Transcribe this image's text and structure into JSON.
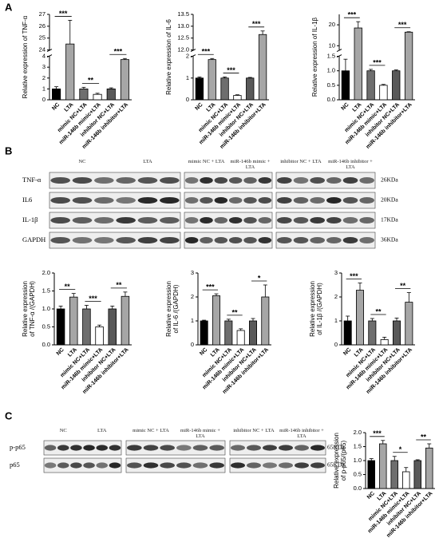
{
  "panels": [
    "A",
    "B",
    "C"
  ],
  "blots": [
    {
      "groups": [
        "NC",
        "LTA",
        "mimic NC + LTA",
        "miR-146b mimic + LTA",
        "inhibitor NC + LTA",
        "miR-146b inhibitor + LTA"
      ],
      "rows": [
        "TNF-α",
        "IL6",
        "IL-1β",
        "GAPDH"
      ],
      "sizes": [
        "26KDa",
        "20KDa",
        "17KDa",
        "36KDa"
      ]
    },
    {
      "groups": [
        "NC",
        "LTA",
        "mimic NC + LTA",
        "miR-146b mimic + LTA",
        "inhibitor NC + LTA",
        "miR-146b inhibitor + LTA"
      ],
      "rows": [
        "p-p65",
        "p65"
      ],
      "sizes": [
        "65KDa",
        "65KDa"
      ]
    }
  ],
  "chart_data": [
    {
      "type": "bar",
      "ylabel": [
        "Relative expression of TNF-α"
      ],
      "categories": [
        "NC",
        "LTA",
        "mimic NC+LTA",
        "miR-146b mimic+LTA",
        "inhibitor NC+LTA",
        "miR-146b inhibitor+LTA"
      ],
      "values": [
        1.0,
        24.5,
        1.0,
        0.5,
        1.0,
        3.7
      ],
      "errors": [
        0.2,
        2.0,
        0.15,
        0.1,
        0.1,
        0.1
      ],
      "colors": [
        "#000000",
        "#a6a6a6",
        "#6e6e6e",
        "#ffffff",
        "#595959",
        "#a6a6a6"
      ],
      "ylim": [
        0,
        27
      ],
      "ybreak": [
        4,
        24
      ],
      "yticks": [
        0,
        1,
        2,
        3,
        4,
        24,
        25,
        26,
        27
      ],
      "significance": [
        "***",
        "**",
        "***"
      ]
    },
    {
      "type": "bar",
      "ylabel": [
        "Relative expression of IL-6"
      ],
      "categories": [
        "NC",
        "LTA",
        "mimic NC+LTA",
        "miR-146b mimic+LTA",
        "inhibitor NC+LTA",
        "miR-146b inhibitor+LTA"
      ],
      "values": [
        1.0,
        1.85,
        1.0,
        0.2,
        1.0,
        12.65
      ],
      "errors": [
        0.05,
        0.05,
        0.05,
        0.03,
        0.03,
        0.15
      ],
      "colors": [
        "#000000",
        "#a6a6a6",
        "#6e6e6e",
        "#ffffff",
        "#595959",
        "#a6a6a6"
      ],
      "ylim": [
        0,
        13.5
      ],
      "ybreak": [
        2,
        12
      ],
      "yticks": [
        0,
        1,
        2,
        {
          "value": 12,
          "label": "12.0"
        },
        12.5,
        {
          "value": 13,
          "label": "13.0"
        },
        13.5
      ],
      "significance": [
        "***",
        "***",
        "***"
      ]
    },
    {
      "type": "bar",
      "ylabel": [
        "Relative expression of IL-1β"
      ],
      "categories": [
        "NC",
        "LTA",
        "mimic NC+LTA",
        "miR-146b mimic+LTA",
        "inhibitor NC+LTA",
        "miR-146b inhibitor+LTA"
      ],
      "values": [
        1.0,
        18.5,
        1.0,
        0.5,
        1.0,
        16.5
      ],
      "errors": [
        0.4,
        3.0,
        0.05,
        0.03,
        0.03,
        0.2
      ],
      "colors": [
        "#000000",
        "#a6a6a6",
        "#6e6e6e",
        "#ffffff",
        "#595959",
        "#a6a6a6"
      ],
      "ylim": [
        0,
        25
      ],
      "ybreak": [
        1.5,
        8
      ],
      "yticks": [
        {
          "value": 0,
          "label": "0.0"
        },
        0.5,
        {
          "value": 1,
          "label": "1.0"
        },
        1.5,
        10,
        20
      ],
      "significance": [
        "***",
        "***",
        "***"
      ]
    },
    {
      "type": "bar",
      "ylabel": [
        "Relative expression",
        "of TNF-α /(GAPDH)"
      ],
      "categories": [
        "NC",
        "LTA",
        "mimic NC+LTA",
        "miR-146b mimic+LTA",
        "inhibitor NC+LTA",
        "miR-146b inhibitor+LTA"
      ],
      "values": [
        1.0,
        1.33,
        1.0,
        0.5,
        1.0,
        1.35
      ],
      "errors": [
        0.08,
        0.1,
        0.1,
        0.05,
        0.08,
        0.12
      ],
      "colors": [
        "#000000",
        "#a6a6a6",
        "#6e6e6e",
        "#ffffff",
        "#595959",
        "#a6a6a6"
      ],
      "ylim": [
        0,
        2
      ],
      "yticks": [
        {
          "value": 0,
          "label": "0.0"
        },
        0.5,
        {
          "value": 1,
          "label": "1.0"
        },
        1.5,
        {
          "value": 2,
          "label": "2.0"
        }
      ],
      "significance": [
        "**",
        "***",
        "**"
      ]
    },
    {
      "type": "bar",
      "ylabel": [
        "Relative expression",
        "of IL-6 /(GAPDH)"
      ],
      "categories": [
        "NC",
        "LTA",
        "mimic NC+LTA",
        "miR-146b mimic+LTA",
        "inhibitor NC+LTA",
        "miR-146b inhibitor+LTA"
      ],
      "values": [
        1.0,
        2.05,
        1.0,
        0.6,
        1.0,
        2.0
      ],
      "errors": [
        0.03,
        0.08,
        0.07,
        0.07,
        0.1,
        0.5
      ],
      "colors": [
        "#000000",
        "#a6a6a6",
        "#6e6e6e",
        "#ffffff",
        "#595959",
        "#a6a6a6"
      ],
      "ylim": [
        0,
        3
      ],
      "yticks": [
        0,
        1,
        2,
        3
      ],
      "significance": [
        "***",
        "**",
        "*"
      ]
    },
    {
      "type": "bar",
      "ylabel": [
        "Relative expression",
        "of IL-1β /(GAPDH)"
      ],
      "categories": [
        "NC",
        "LTA",
        "mimic NC+LTA",
        "miR-146b mimic+LTA",
        "inhibitor NC+LTA",
        "miR-146b inhibitor+LTA"
      ],
      "values": [
        1.0,
        2.28,
        1.0,
        0.22,
        1.0,
        1.78
      ],
      "errors": [
        0.2,
        0.3,
        0.1,
        0.1,
        0.12,
        0.4
      ],
      "colors": [
        "#000000",
        "#a6a6a6",
        "#6e6e6e",
        "#ffffff",
        "#595959",
        "#a6a6a6"
      ],
      "ylim": [
        0,
        3
      ],
      "yticks": [
        0,
        1,
        2,
        3
      ],
      "significance": [
        "***",
        "**",
        "**"
      ]
    },
    {
      "type": "bar",
      "ylabel": [
        "Relative expression",
        "of p-p65/(p65)"
      ],
      "categories": [
        "NC",
        "LTA",
        "mimic NC+LTA",
        "miR-146b mimic+LTA",
        "inhibitor NC+LTA",
        "miR-146b inhibitor+LTA"
      ],
      "values": [
        1.0,
        1.6,
        1.0,
        0.6,
        1.0,
        1.45
      ],
      "errors": [
        0.07,
        0.12,
        0.15,
        0.15,
        0.03,
        0.15
      ],
      "colors": [
        "#000000",
        "#a6a6a6",
        "#6e6e6e",
        "#ffffff",
        "#595959",
        "#a6a6a6"
      ],
      "ylim": [
        0,
        2
      ],
      "yticks": [
        {
          "value": 0,
          "label": "0.0"
        },
        0.5,
        {
          "value": 1,
          "label": "1.0"
        },
        1.5,
        {
          "value": 2,
          "label": "2.0"
        }
      ],
      "significance": [
        "***",
        "*",
        "**"
      ]
    }
  ]
}
